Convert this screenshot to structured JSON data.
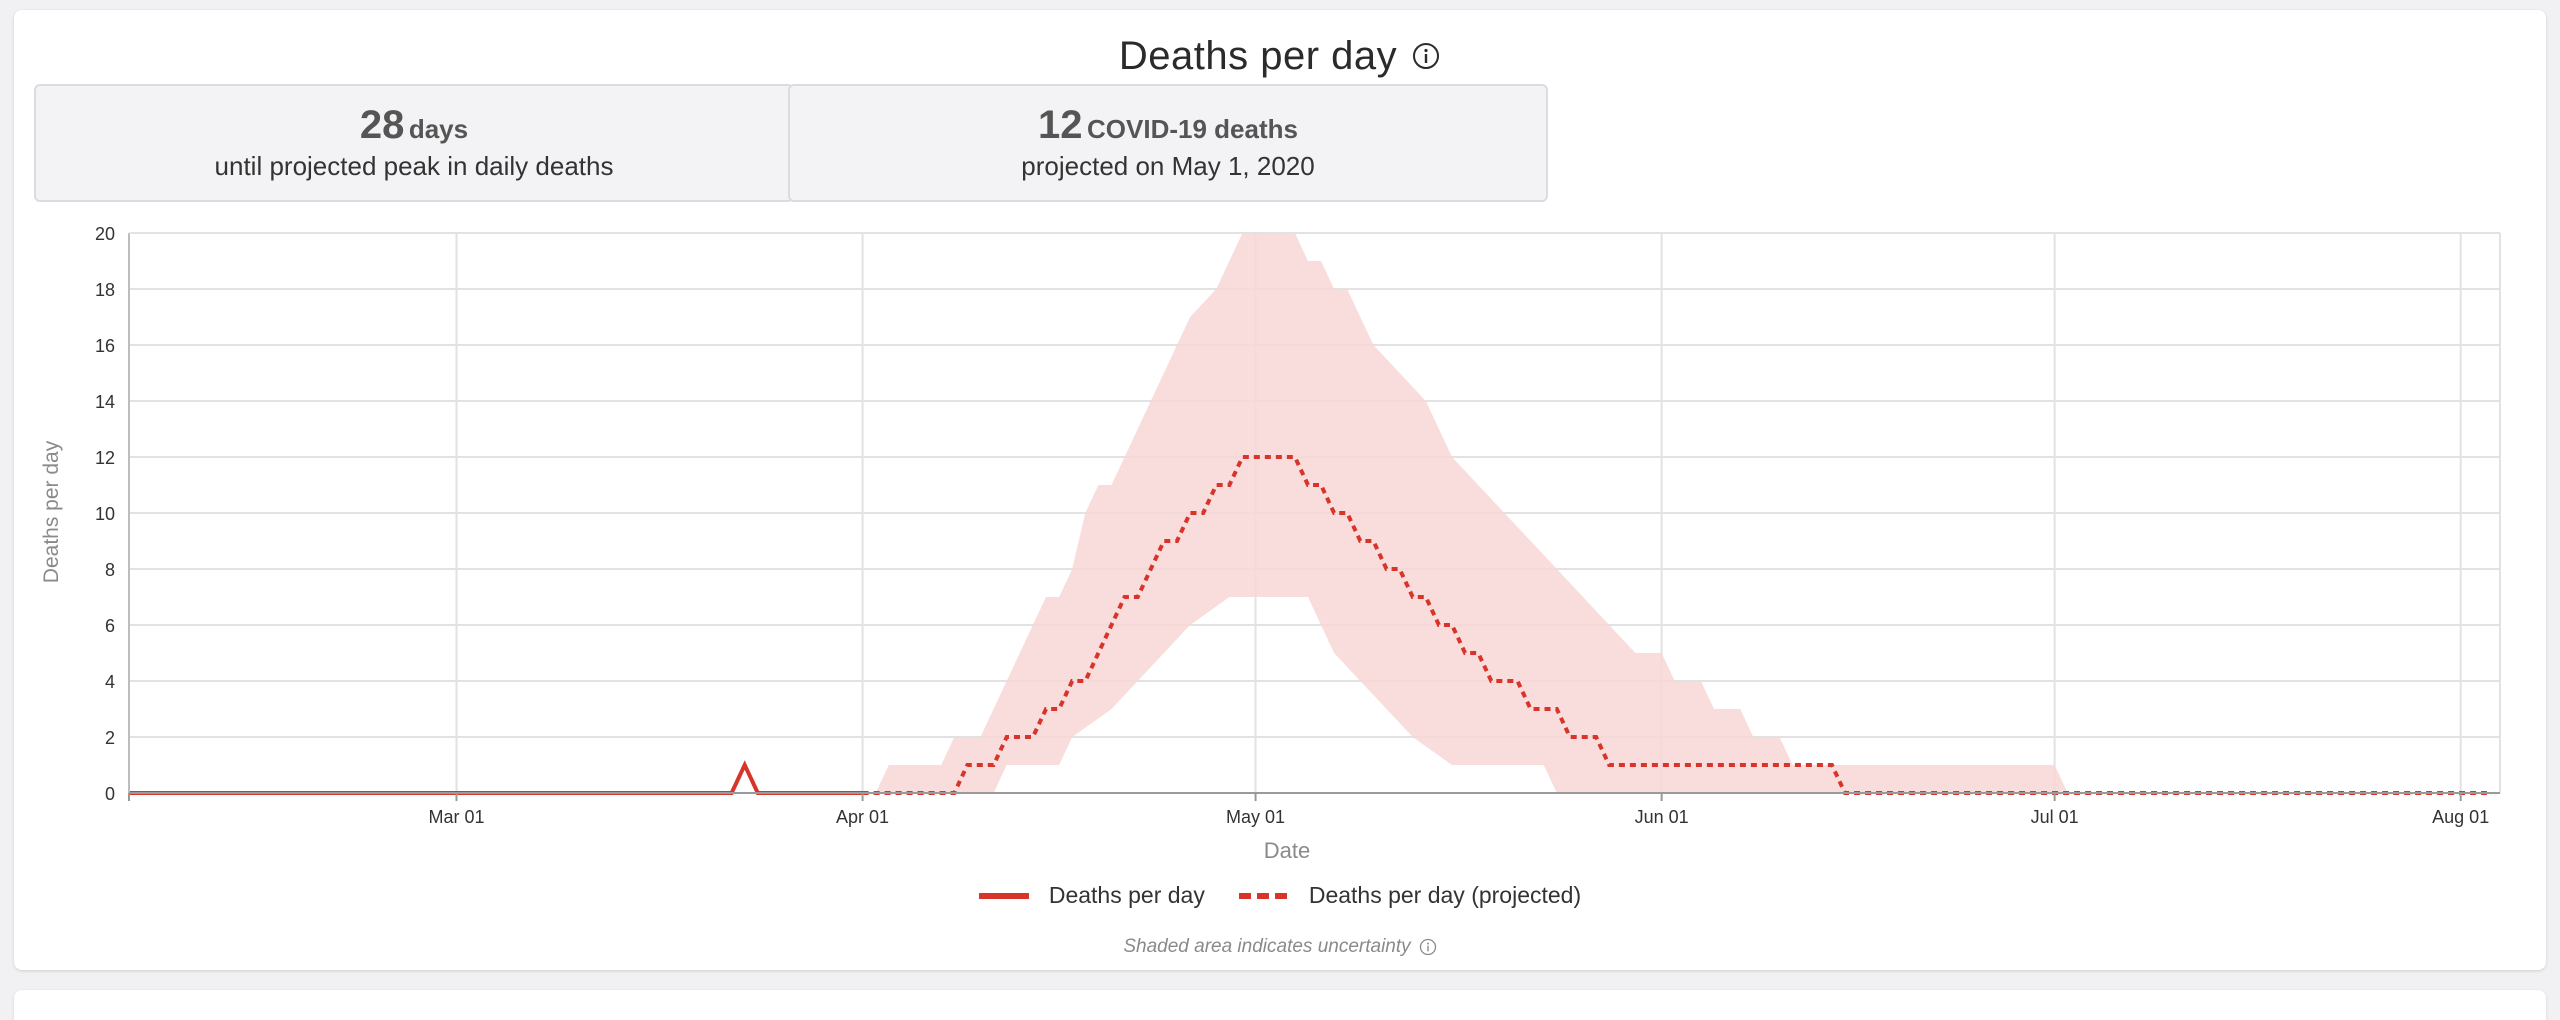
{
  "header": {
    "title": "Deaths per day"
  },
  "stats": [
    {
      "number": "28",
      "unit": "days",
      "caption": "until projected peak in daily deaths"
    },
    {
      "number": "12",
      "unit": "COVID-19 deaths",
      "caption": "projected on May 1, 2020"
    }
  ],
  "footnote": "Shaded area indicates uncertainty",
  "colors": {
    "series": "#d8342a",
    "band": "#f8d6d6",
    "grid": "#e2e2e2",
    "axis_text": "#333333",
    "axis_title": "#8a8a8a"
  },
  "chart_data": {
    "type": "line",
    "xlabel": "Date",
    "ylabel": "Deaths per day",
    "x_ticks": [
      "Mar 01",
      "Apr 01",
      "May 01",
      "Jun 01",
      "Jul 01",
      "Aug 01"
    ],
    "x_tick_dates": [
      "2020-03-01",
      "2020-04-01",
      "2020-05-01",
      "2020-06-01",
      "2020-07-01",
      "2020-08-01"
    ],
    "y_ticks": [
      0,
      2,
      4,
      6,
      8,
      10,
      12,
      14,
      16,
      18,
      20
    ],
    "ylim": [
      0,
      20
    ],
    "xlim": [
      "2020-02-05",
      "2020-08-04"
    ],
    "grid": true,
    "legend": "bottom-center",
    "series": [
      {
        "name": "Deaths per day",
        "style": "solid",
        "points": [
          [
            "2020-02-05",
            0
          ],
          [
            "2020-03-22",
            0
          ],
          [
            "2020-03-23",
            1
          ],
          [
            "2020-03-24",
            0
          ],
          [
            "2020-04-01",
            0
          ]
        ]
      },
      {
        "name": "Deaths per day (projected)",
        "style": "dashed",
        "points": [
          [
            "2020-04-01",
            0
          ],
          [
            "2020-04-08",
            0
          ],
          [
            "2020-04-09",
            1
          ],
          [
            "2020-04-11",
            1
          ],
          [
            "2020-04-12",
            2
          ],
          [
            "2020-04-14",
            2
          ],
          [
            "2020-04-15",
            3
          ],
          [
            "2020-04-16",
            3
          ],
          [
            "2020-04-17",
            4
          ],
          [
            "2020-04-18",
            4
          ],
          [
            "2020-04-19",
            5
          ],
          [
            "2020-04-20",
            6
          ],
          [
            "2020-04-21",
            7
          ],
          [
            "2020-04-22",
            7
          ],
          [
            "2020-04-23",
            8
          ],
          [
            "2020-04-24",
            9
          ],
          [
            "2020-04-25",
            9
          ],
          [
            "2020-04-26",
            10
          ],
          [
            "2020-04-27",
            10
          ],
          [
            "2020-04-28",
            11
          ],
          [
            "2020-04-29",
            11
          ],
          [
            "2020-04-30",
            12
          ],
          [
            "2020-05-04",
            12
          ],
          [
            "2020-05-05",
            11
          ],
          [
            "2020-05-06",
            11
          ],
          [
            "2020-05-07",
            10
          ],
          [
            "2020-05-08",
            10
          ],
          [
            "2020-05-09",
            9
          ],
          [
            "2020-05-10",
            9
          ],
          [
            "2020-05-11",
            8
          ],
          [
            "2020-05-12",
            8
          ],
          [
            "2020-05-13",
            7
          ],
          [
            "2020-05-14",
            7
          ],
          [
            "2020-05-15",
            6
          ],
          [
            "2020-05-16",
            6
          ],
          [
            "2020-05-17",
            5
          ],
          [
            "2020-05-18",
            5
          ],
          [
            "2020-05-19",
            4
          ],
          [
            "2020-05-21",
            4
          ],
          [
            "2020-05-22",
            3
          ],
          [
            "2020-05-24",
            3
          ],
          [
            "2020-05-25",
            2
          ],
          [
            "2020-05-27",
            2
          ],
          [
            "2020-05-28",
            1
          ],
          [
            "2020-06-14",
            1
          ],
          [
            "2020-06-15",
            0
          ],
          [
            "2020-08-03",
            0
          ]
        ]
      }
    ],
    "uncertainty_band": {
      "upper": [
        [
          "2020-04-02",
          0
        ],
        [
          "2020-04-03",
          1
        ],
        [
          "2020-04-07",
          1
        ],
        [
          "2020-04-08",
          2
        ],
        [
          "2020-04-10",
          2
        ],
        [
          "2020-04-11",
          3
        ],
        [
          "2020-04-12",
          4
        ],
        [
          "2020-04-14",
          6
        ],
        [
          "2020-04-15",
          7
        ],
        [
          "2020-04-16",
          7
        ],
        [
          "2020-04-17",
          8
        ],
        [
          "2020-04-18",
          10
        ],
        [
          "2020-04-19",
          11
        ],
        [
          "2020-04-20",
          11
        ],
        [
          "2020-04-22",
          13
        ],
        [
          "2020-04-26",
          17
        ],
        [
          "2020-04-28",
          18
        ],
        [
          "2020-04-30",
          20
        ],
        [
          "2020-05-04",
          20
        ],
        [
          "2020-05-05",
          19
        ],
        [
          "2020-05-06",
          19
        ],
        [
          "2020-05-07",
          18
        ],
        [
          "2020-05-08",
          18
        ],
        [
          "2020-05-10",
          16
        ],
        [
          "2020-05-12",
          15
        ],
        [
          "2020-05-14",
          14
        ],
        [
          "2020-05-16",
          12
        ],
        [
          "2020-05-18",
          11
        ],
        [
          "2020-05-20",
          10
        ],
        [
          "2020-05-22",
          9
        ],
        [
          "2020-05-24",
          8
        ],
        [
          "2020-05-26",
          7
        ],
        [
          "2020-05-28",
          6
        ],
        [
          "2020-05-30",
          5
        ],
        [
          "2020-06-01",
          5
        ],
        [
          "2020-06-02",
          4
        ],
        [
          "2020-06-04",
          4
        ],
        [
          "2020-06-05",
          3
        ],
        [
          "2020-06-07",
          3
        ],
        [
          "2020-06-08",
          2
        ],
        [
          "2020-06-10",
          2
        ],
        [
          "2020-06-11",
          1
        ],
        [
          "2020-06-15",
          1
        ],
        [
          "2020-06-16",
          1
        ],
        [
          "2020-07-01",
          1
        ],
        [
          "2020-07-02",
          0
        ]
      ],
      "lower": [
        [
          "2020-04-11",
          0
        ],
        [
          "2020-04-12",
          1
        ],
        [
          "2020-04-16",
          1
        ],
        [
          "2020-04-17",
          2
        ],
        [
          "2020-04-20",
          3
        ],
        [
          "2020-04-22",
          4
        ],
        [
          "2020-04-24",
          5
        ],
        [
          "2020-04-26",
          6
        ],
        [
          "2020-04-29",
          7
        ],
        [
          "2020-05-05",
          7
        ],
        [
          "2020-05-06",
          6
        ],
        [
          "2020-05-07",
          5
        ],
        [
          "2020-05-09",
          4
        ],
        [
          "2020-05-11",
          3
        ],
        [
          "2020-05-13",
          2
        ],
        [
          "2020-05-16",
          1
        ],
        [
          "2020-05-23",
          1
        ],
        [
          "2020-05-24",
          0
        ]
      ]
    }
  }
}
